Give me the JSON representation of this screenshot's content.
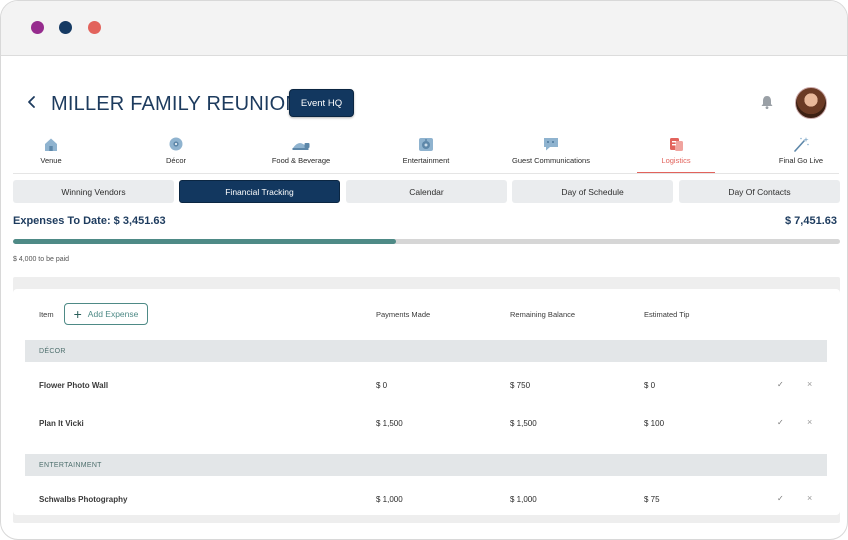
{
  "page": {
    "title": "MILLER FAMILY REUNION",
    "event_hq_label": "Event HQ"
  },
  "categories": [
    {
      "label": "Venue",
      "icon": "venue-icon"
    },
    {
      "label": "Décor",
      "icon": "decor-icon"
    },
    {
      "label": "Food & Beverage",
      "icon": "food-beverage-icon"
    },
    {
      "label": "Entertainment",
      "icon": "entertainment-icon"
    },
    {
      "label": "Guest Communications",
      "icon": "chat-icon"
    },
    {
      "label": "Logistics",
      "icon": "logistics-icon",
      "active": true
    },
    {
      "label": "Final Go Live",
      "icon": "magic-wand-icon"
    }
  ],
  "subtabs": [
    {
      "label": "Winning Vendors"
    },
    {
      "label": "Financial Tracking",
      "active": true
    },
    {
      "label": "Calendar"
    },
    {
      "label": "Day of Schedule"
    },
    {
      "label": "Day Of Contacts"
    }
  ],
  "expenses": {
    "label": "Expenses To Date: $ 3,451.63",
    "total": "$ 7,451.63",
    "progress_fraction": 0.463,
    "to_be_paid": "$ 4,000 to be paid"
  },
  "table": {
    "headers": {
      "item": "Item",
      "add_expense": "Add Expense",
      "payments_made": "Payments Made",
      "remaining_balance": "Remaining Balance",
      "estimated_tip": "Estimated Tip"
    },
    "groups": [
      {
        "name": "DÉCOR",
        "rows": [
          {
            "item": "Flower Photo Wall",
            "paid": "$ 0",
            "remaining": "$ 750",
            "tip": "$ 0"
          },
          {
            "item": "Plan It Vicki",
            "paid": "$ 1,500",
            "remaining": "$ 1,500",
            "tip": "$ 100"
          }
        ]
      },
      {
        "name": "ENTERTAINMENT",
        "rows": [
          {
            "item": "Schwalbs Photography",
            "paid": "$ 1,000",
            "remaining": "$ 1,000",
            "tip": "$ 75"
          }
        ]
      }
    ]
  },
  "colors": {
    "brand_navy": "#12375f",
    "accent_coral": "#e2635c",
    "progress_teal": "#4e8a86"
  }
}
